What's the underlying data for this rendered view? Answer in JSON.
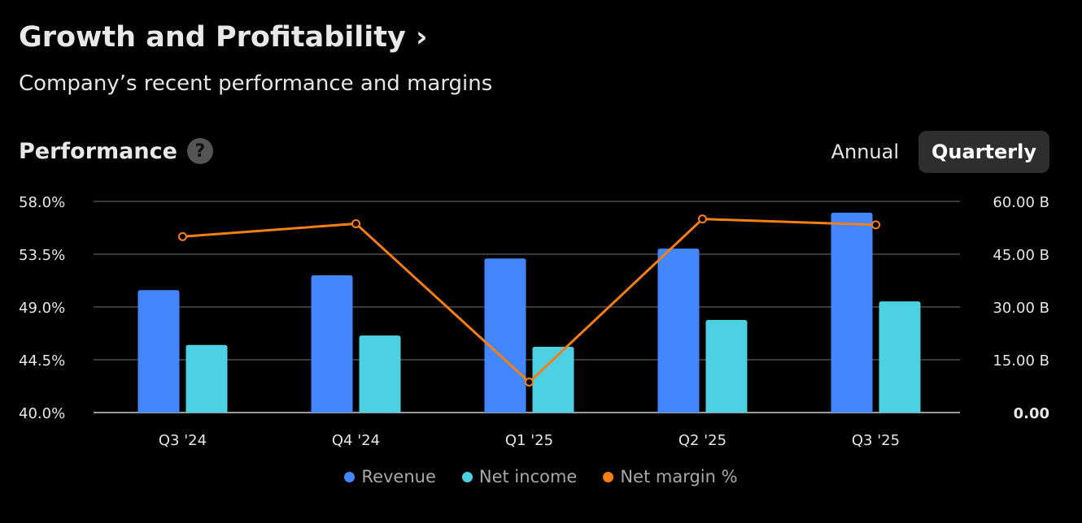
{
  "header": {
    "title": "Growth and Profitability ›",
    "subtitle": "Company’s recent performance and margins"
  },
  "section": {
    "title": "Performance",
    "help_icon": "?"
  },
  "toggle": {
    "options": [
      "Annual",
      "Quarterly"
    ],
    "selected": "Quarterly"
  },
  "chart_data": {
    "type": "bar",
    "categories": [
      "Q3 '24",
      "Q4 '24",
      "Q1 '25",
      "Q2 '25",
      "Q3 '25"
    ],
    "series": [
      {
        "name": "Revenue",
        "type": "bar",
        "axis": "right",
        "color": "#4287ff",
        "values": [
          34.8,
          39.0,
          43.8,
          46.6,
          56.8
        ]
      },
      {
        "name": "Net income",
        "type": "bar",
        "axis": "right",
        "color": "#4dd0e1",
        "values": [
          19.2,
          21.9,
          18.7,
          26.3,
          31.6
        ]
      },
      {
        "name": "Net margin %",
        "type": "line",
        "axis": "left",
        "color": "#f57f17",
        "values": [
          55.0,
          56.1,
          42.6,
          56.5,
          56.0
        ]
      }
    ],
    "left_axis": {
      "range": [
        40,
        58
      ],
      "ticks": [
        "58.0%",
        "53.5%",
        "49.0%",
        "44.5%",
        "40.0%"
      ]
    },
    "right_axis": {
      "range": [
        0,
        60
      ],
      "ticks": [
        "60.00 B",
        "45.00 B",
        "30.00 B",
        "15.00 B",
        "0.00"
      ]
    },
    "legend": [
      "Revenue",
      "Net income",
      "Net margin %"
    ],
    "legend_position": "bottom",
    "grid": true
  }
}
